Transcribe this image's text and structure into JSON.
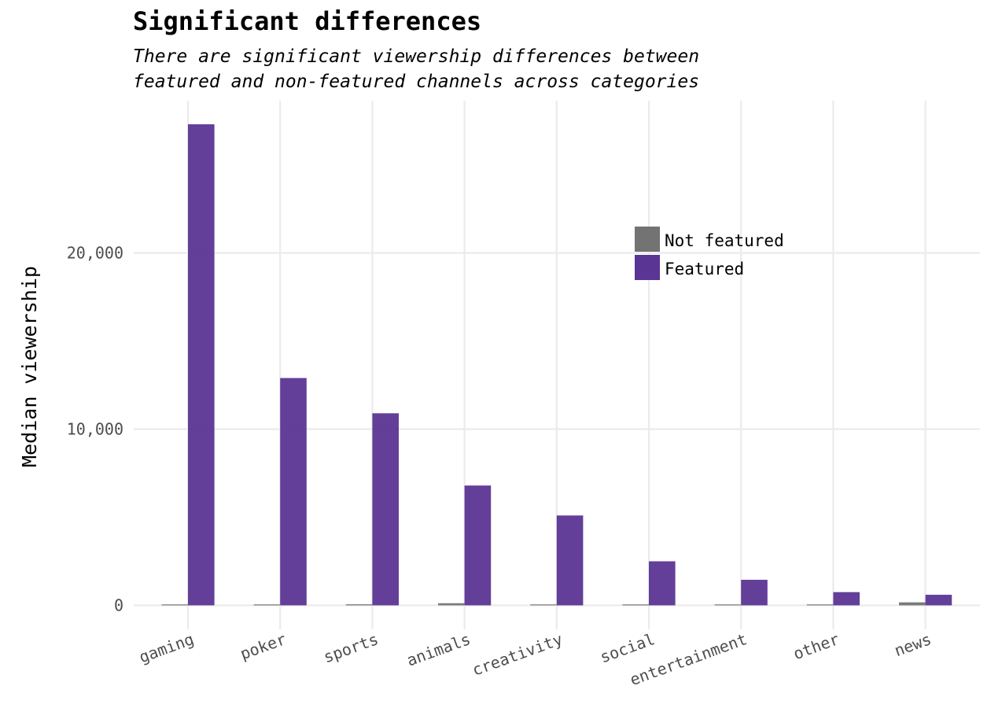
{
  "title": "Significant differences",
  "subtitle_lines": [
    "There are significant viewership differences between",
    "featured and non-featured channels across categories"
  ],
  "chart_data": {
    "type": "bar",
    "categories": [
      "gaming",
      "poker",
      "sports",
      "animals",
      "creativity",
      "social",
      "entertainment",
      "other",
      "news"
    ],
    "series": [
      {
        "name": "Not featured",
        "color": "#737373",
        "values": [
          20,
          20,
          60,
          120,
          20,
          20,
          50,
          20,
          170
        ]
      },
      {
        "name": "Featured",
        "color": "#5b3594",
        "values": [
          27300,
          12900,
          10900,
          6800,
          5100,
          2500,
          1450,
          750,
          600
        ]
      }
    ],
    "xlabel": "",
    "ylabel": "Median viewership",
    "yticks": [
      0,
      10000,
      20000
    ],
    "ytick_labels": [
      "0",
      "10,000",
      "20,000"
    ],
    "ylim": [
      0,
      28600
    ],
    "grid": true,
    "legend_position": "top-right"
  }
}
